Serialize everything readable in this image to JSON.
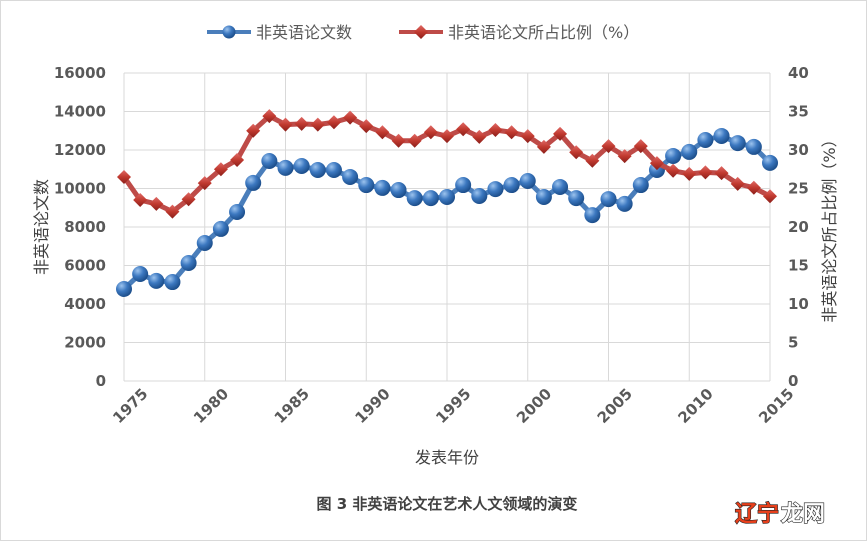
{
  "chart_data": {
    "type": "line",
    "caption": "图 3 非英语论文在艺术人文领域的演变",
    "xlabel": "发表年份",
    "ylabel_left": "非英语论文数",
    "ylabel_right": "非英语论文所占比例（%）",
    "xlim": [
      1975,
      2015
    ],
    "x_ticks": [
      1975,
      1980,
      1985,
      1990,
      1995,
      2000,
      2005,
      2010,
      2015
    ],
    "ylim_left": [
      0,
      16000
    ],
    "y_ticks_left": [
      0,
      2000,
      4000,
      6000,
      8000,
      10000,
      12000,
      14000,
      16000
    ],
    "ylim_right": [
      0,
      40
    ],
    "y_ticks_right": [
      0,
      5,
      10,
      15,
      20,
      25,
      30,
      35,
      40
    ],
    "grid": true,
    "legend_position": "top",
    "x": [
      1975,
      1976,
      1977,
      1978,
      1979,
      1980,
      1981,
      1982,
      1983,
      1984,
      1985,
      1986,
      1987,
      1988,
      1989,
      1990,
      1991,
      1992,
      1993,
      1994,
      1995,
      1996,
      1997,
      1998,
      1999,
      2000,
      2001,
      2002,
      2003,
      2004,
      2005,
      2006,
      2007,
      2008,
      2009,
      2010,
      2011,
      2012,
      2013,
      2014,
      2015
    ],
    "series": [
      {
        "name": "非英语论文数",
        "axis": "left",
        "color": "#4a7ebb",
        "marker": "circle",
        "values": [
          4780,
          5560,
          5200,
          5140,
          6130,
          7170,
          7900,
          8780,
          10290,
          11430,
          11070,
          11170,
          10960,
          10960,
          10600,
          10180,
          10030,
          9920,
          9500,
          9500,
          9560,
          10180,
          9610,
          9970,
          10180,
          10390,
          9560,
          10080,
          9500,
          8620,
          9450,
          9200,
          10180,
          10960,
          11690,
          11900,
          12520,
          12730,
          12360,
          12160,
          11330
        ]
      },
      {
        "name": "非英语论文所占比例（%）",
        "axis": "right",
        "color": "#be4b48",
        "marker": "diamond",
        "values": [
          26.5,
          23.5,
          23.0,
          22.0,
          23.6,
          25.7,
          27.5,
          28.7,
          32.5,
          34.4,
          33.3,
          33.4,
          33.3,
          33.6,
          34.2,
          33.1,
          32.3,
          31.2,
          31.2,
          32.3,
          31.8,
          32.7,
          31.7,
          32.6,
          32.3,
          31.8,
          30.4,
          32.1,
          29.7,
          28.6,
          30.5,
          29.2,
          30.5,
          28.3,
          27.3,
          26.9,
          27.1,
          27.0,
          25.6,
          25.1,
          24.0
        ]
      }
    ]
  },
  "watermark": {
    "text": "辽宁龙网",
    "colors": [
      "#e8401c",
      "#ffffff"
    ]
  }
}
